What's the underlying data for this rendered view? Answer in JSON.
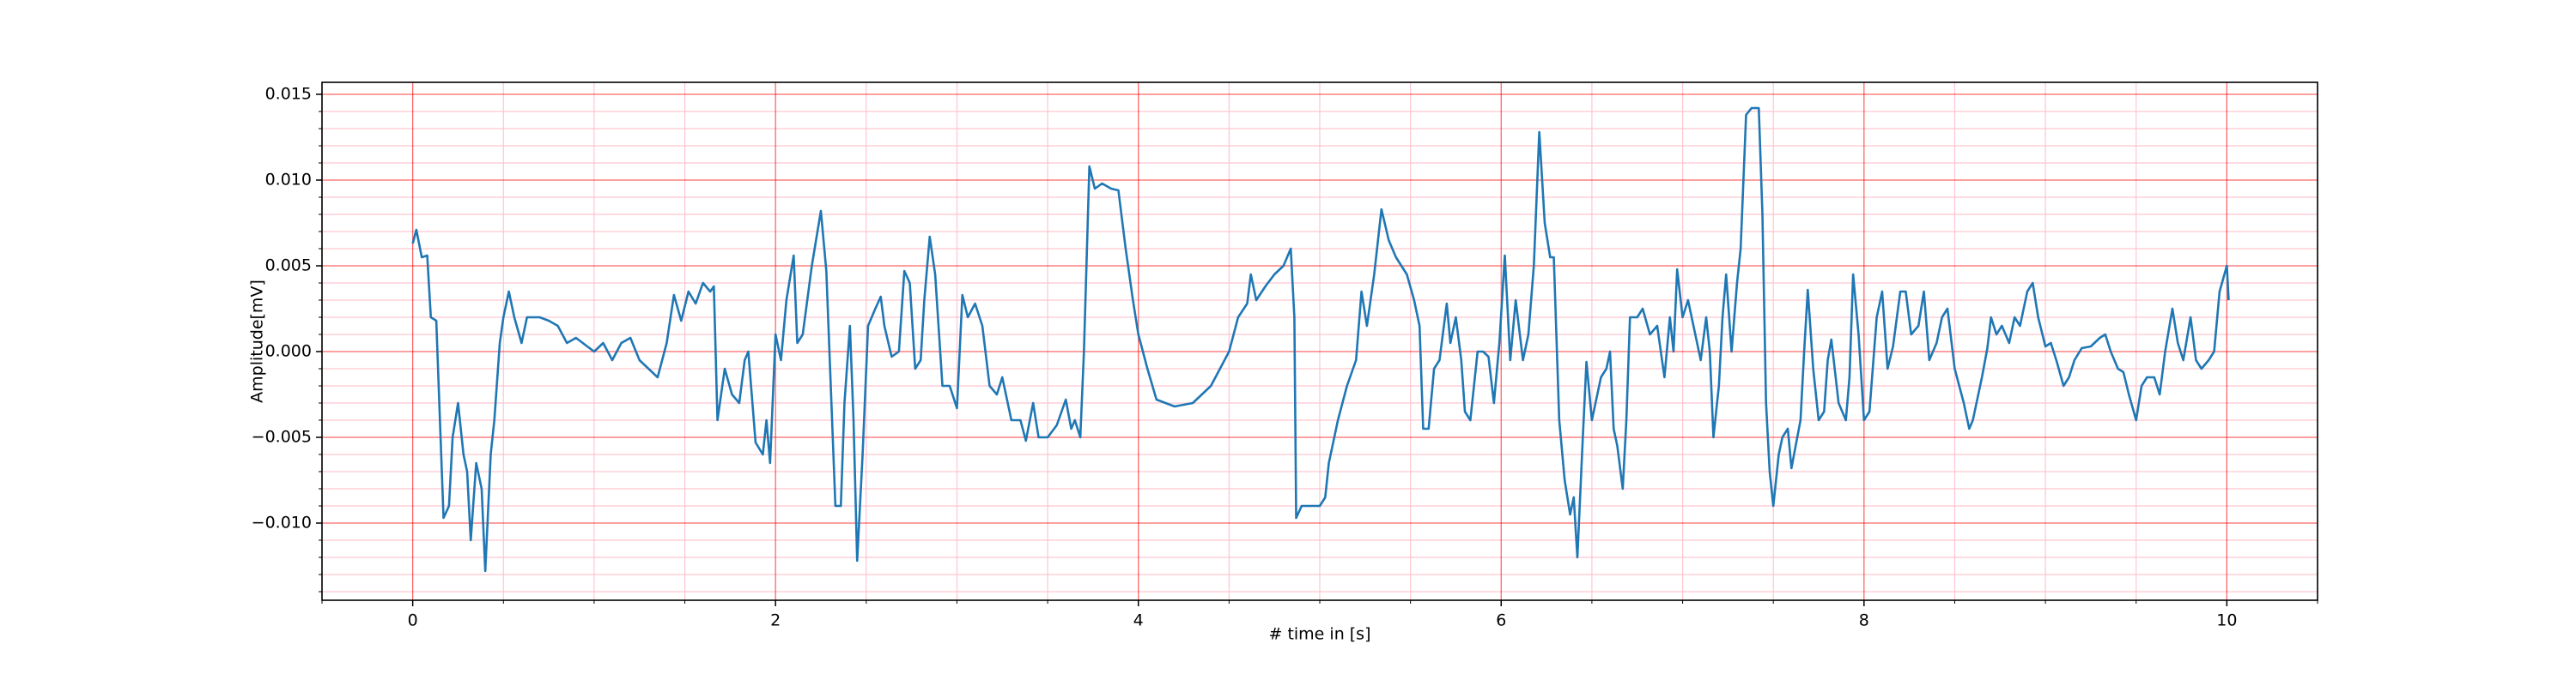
{
  "chart_data": {
    "type": "line",
    "xlabel": "# time in [s]",
    "ylabel": "Amplitude[mV]",
    "color": "#1f77b4",
    "xlim": [
      -0.5,
      10.5
    ],
    "ylim": [
      -0.0145,
      0.0157
    ],
    "xticks": [
      0,
      2,
      4,
      6,
      8,
      10
    ],
    "yticks": [
      {
        "value": -0.01,
        "label": "−0.010"
      },
      {
        "value": -0.005,
        "label": "−0.005"
      },
      {
        "value": 0,
        "label": "0.000"
      },
      0.005,
      {
        "value": 0.01,
        "label": "0.010"
      },
      0.015
    ],
    "grid": true,
    "grid_color": "#ff0000",
    "minor_grid": {
      "x_step": 0.5,
      "y_step": 0.001,
      "color": "#ffc0cb"
    },
    "x": [
      0,
      0.02,
      0.05,
      0.08,
      0.1,
      0.13,
      0.15,
      0.17,
      0.2,
      0.22,
      0.25,
      0.28,
      0.3,
      0.32,
      0.35,
      0.38,
      0.4,
      0.43,
      0.45,
      0.48,
      0.5,
      0.53,
      0.56,
      0.6,
      0.63,
      0.7,
      0.75,
      0.8,
      0.85,
      0.9,
      1.0,
      1.05,
      1.1,
      1.15,
      1.2,
      1.25,
      1.3,
      1.35,
      1.4,
      1.44,
      1.48,
      1.52,
      1.56,
      1.6,
      1.64,
      1.66,
      1.68,
      1.72,
      1.76,
      1.8,
      1.83,
      1.85,
      1.89,
      1.93,
      1.95,
      1.97,
      2.0,
      2.03,
      2.06,
      2.1,
      2.12,
      2.15,
      2.2,
      2.25,
      2.28,
      2.33,
      2.36,
      2.38,
      2.41,
      2.43,
      2.45,
      2.48,
      2.51,
      2.55,
      2.58,
      2.6,
      2.64,
      2.68,
      2.71,
      2.74,
      2.77,
      2.8,
      2.82,
      2.85,
      2.88,
      2.92,
      2.96,
      3.0,
      3.03,
      3.06,
      3.1,
      3.14,
      3.18,
      3.22,
      3.25,
      3.3,
      3.35,
      3.38,
      3.42,
      3.45,
      3.5,
      3.55,
      3.6,
      3.63,
      3.65,
      3.68,
      3.7,
      3.73,
      3.76,
      3.8,
      3.85,
      3.89,
      3.93,
      3.97,
      4.0,
      4.05,
      4.1,
      4.2,
      4.3,
      4.4,
      4.45,
      4.5,
      4.55,
      4.6,
      4.62,
      4.65,
      4.7,
      4.75,
      4.8,
      4.84,
      4.86,
      4.87,
      4.9,
      4.95,
      5.0,
      5.03,
      5.05,
      5.1,
      5.15,
      5.2,
      5.23,
      5.26,
      5.3,
      5.34,
      5.38,
      5.42,
      5.48,
      5.52,
      5.55,
      5.57,
      5.6,
      5.63,
      5.66,
      5.7,
      5.72,
      5.75,
      5.78,
      5.8,
      5.83,
      5.87,
      5.9,
      5.93,
      5.96,
      5.99,
      6.02,
      6.05,
      6.08,
      6.12,
      6.15,
      6.18,
      6.21,
      6.24,
      6.27,
      6.29,
      6.32,
      6.35,
      6.38,
      6.4,
      6.42,
      6.45,
      6.47,
      6.5,
      6.55,
      6.58,
      6.6,
      6.62,
      6.64,
      6.67,
      6.69,
      6.71,
      6.75,
      6.78,
      6.82,
      6.86,
      6.9,
      6.93,
      6.95,
      6.97,
      7.0,
      7.03,
      7.06,
      7.1,
      7.13,
      7.15,
      7.17,
      7.2,
      7.22,
      7.24,
      7.27,
      7.3,
      7.32,
      7.35,
      7.38,
      7.42,
      7.44,
      7.46,
      7.48,
      7.5,
      7.53,
      7.55,
      7.58,
      7.6,
      7.65,
      7.67,
      7.69,
      7.72,
      7.75,
      7.78,
      7.8,
      7.82,
      7.86,
      7.9,
      7.92,
      7.94,
      7.97,
      8.0,
      8.03,
      8.07,
      8.1,
      8.13,
      8.16,
      8.2,
      8.23,
      8.26,
      8.3,
      8.33,
      8.36,
      8.4,
      8.43,
      8.46,
      8.5,
      8.55,
      8.58,
      8.6,
      8.65,
      8.68,
      8.7,
      8.73,
      8.76,
      8.8,
      8.83,
      8.86,
      8.9,
      8.93,
      8.96,
      9.0,
      9.03,
      9.06,
      9.1,
      9.13,
      9.16,
      9.2,
      9.25,
      9.3,
      9.33,
      9.36,
      9.4,
      9.43,
      9.46,
      9.5,
      9.53,
      9.56,
      9.6,
      9.63,
      9.66,
      9.7,
      9.73,
      9.76,
      9.8,
      9.83,
      9.86,
      9.9,
      9.93,
      9.96,
      10.0,
      10.01
    ],
    "values": [
      0.0063,
      0.0071,
      0.0055,
      0.0056,
      0.002,
      0.0018,
      -0.004,
      -0.0097,
      -0.009,
      -0.005,
      -0.003,
      -0.006,
      -0.007,
      -0.011,
      -0.0065,
      -0.008,
      -0.0128,
      -0.006,
      -0.004,
      0.0005,
      0.002,
      0.0035,
      0.002,
      0.0005,
      0.002,
      0.002,
      0.0018,
      0.0015,
      0.0005,
      0.0008,
      0,
      0.0005,
      -0.0005,
      0.0005,
      0.0008,
      -0.0005,
      -0.001,
      -0.0015,
      0.0005,
      0.0033,
      0.0018,
      0.0035,
      0.0028,
      0.004,
      0.0035,
      0.0038,
      -0.004,
      -0.001,
      -0.0025,
      -0.003,
      -0.0005,
      0,
      -0.0053,
      -0.006,
      -0.004,
      -0.0065,
      0.001,
      -0.0005,
      0.003,
      0.0056,
      0.0005,
      0.001,
      0.005,
      0.0082,
      0.0047,
      -0.009,
      -0.009,
      -0.003,
      0.0015,
      -0.004,
      -0.0122,
      -0.006,
      0.0015,
      0.0025,
      0.0032,
      0.0015,
      -0.0003,
      0,
      0.0047,
      0.004,
      -0.001,
      -0.0005,
      0.003,
      0.0067,
      0.0045,
      -0.002,
      -0.002,
      -0.0033,
      0.0033,
      0.002,
      0.0028,
      0.0015,
      -0.002,
      -0.0025,
      -0.0015,
      -0.004,
      -0.004,
      -0.0052,
      -0.003,
      -0.005,
      -0.005,
      -0.0043,
      -0.0028,
      -0.0045,
      -0.004,
      -0.005,
      0,
      0.0108,
      0.0095,
      0.0098,
      0.0095,
      0.0094,
      0.006,
      0.003,
      0.001,
      -0.001,
      -0.0028,
      -0.0032,
      -0.003,
      -0.002,
      -0.001,
      0,
      0.002,
      0.0028,
      0.0045,
      0.003,
      0.0038,
      0.0045,
      0.005,
      0.006,
      0.002,
      -0.0097,
      -0.009,
      -0.009,
      -0.009,
      -0.0085,
      -0.0065,
      -0.004,
      -0.002,
      -0.0005,
      0.0035,
      0.0015,
      0.0045,
      0.0083,
      0.0065,
      0.0055,
      0.0045,
      0.003,
      0.0015,
      -0.0045,
      -0.0045,
      -0.001,
      -0.0005,
      0.0028,
      0.0005,
      0.002,
      -0.0005,
      -0.0035,
      -0.004,
      0,
      0,
      -0.0003,
      -0.003,
      0.0005,
      0.0056,
      -0.0005,
      0.003,
      -0.0005,
      0.001,
      0.005,
      0.0128,
      0.0075,
      0.0055,
      0.0055,
      -0.004,
      -0.0075,
      -0.0095,
      -0.0085,
      -0.012,
      -0.005,
      -0.0006,
      -0.004,
      -0.0015,
      -0.001,
      0,
      -0.0045,
      -0.0055,
      -0.008,
      -0.004,
      0.002,
      0.002,
      0.0025,
      0.001,
      0.0015,
      -0.0015,
      0.002,
      0,
      0.0048,
      0.002,
      0.003,
      0.0015,
      -0.0005,
      0.002,
      0,
      -0.005,
      -0.002,
      0.002,
      0.0045,
      0,
      0.004,
      0.006,
      0.0138,
      0.0142,
      0.0142,
      0.008,
      -0.003,
      -0.007,
      -0.009,
      -0.006,
      -0.005,
      -0.0045,
      -0.0068,
      -0.004,
      0,
      0.0036,
      -0.001,
      -0.004,
      -0.0035,
      -0.0005,
      0.0007,
      -0.003,
      -0.004,
      -0.0015,
      0.0045,
      0.001,
      -0.004,
      -0.0035,
      0.002,
      0.0035,
      -0.001,
      0.0003,
      0.0035,
      0.0035,
      0.001,
      0.0015,
      0.0035,
      -0.0005,
      0.0005,
      0.002,
      0.0025,
      -0.001,
      -0.003,
      -0.0045,
      -0.004,
      -0.0015,
      0.0002,
      0.002,
      0.001,
      0.0015,
      0.0005,
      0.002,
      0.0015,
      0.0035,
      0.004,
      0.002,
      0.0003,
      0.0005,
      -0.0005,
      -0.002,
      -0.0015,
      -0.0005,
      0.0002,
      0.0003,
      0.0008,
      0.001,
      0,
      -0.001,
      -0.0012,
      -0.0025,
      -0.004,
      -0.002,
      -0.0015,
      -0.0015,
      -0.0025,
      0,
      0.0025,
      0.0005,
      -0.0005,
      0.002,
      -0.0005,
      -0.001,
      -0.0005,
      0,
      0.0035,
      0.005,
      0.003
    ]
  }
}
